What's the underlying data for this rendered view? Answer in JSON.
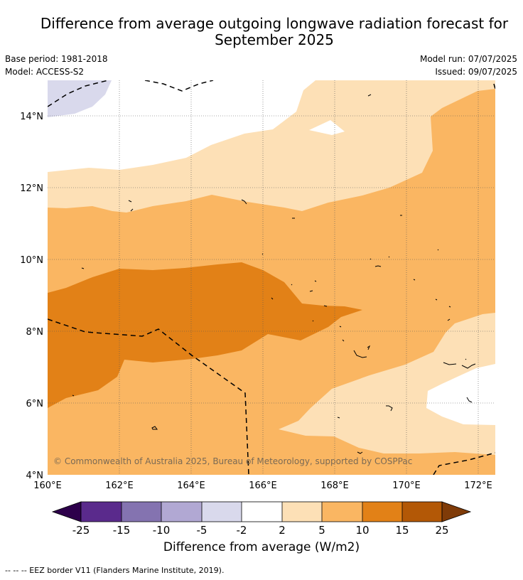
{
  "header": {
    "title_line1": "Difference from average outgoing longwave radiation forecast for",
    "title_line2": "September 2025",
    "base_period": "Base period: 1981-2018",
    "model": "Model: ACCESS-S2",
    "model_run": "Model run: 07/07/2025",
    "issued": "Issued: 09/07/2025"
  },
  "map": {
    "lon_ticks": [
      "160°E",
      "162°E",
      "164°E",
      "166°E",
      "168°E",
      "170°E",
      "172°E"
    ],
    "lat_ticks": [
      "14°N",
      "12°N",
      "10°N",
      "8°N",
      "6°N",
      "4°N"
    ],
    "copyright": "© Commonwealth of Australia 2025, Bureau of Meteorology, supported by COSPPac",
    "colors": {
      "lavender": "#d9d9ec",
      "white": "#ffffff",
      "pale_orange": "#fde0b6",
      "light_orange": "#fab662",
      "orange": "#e28117",
      "border": "#000000"
    }
  },
  "colorbar": {
    "title": "Difference from average (W/m2)",
    "tick_labels": [
      "-25",
      "-15",
      "-10",
      "-5",
      "-2",
      "2",
      "5",
      "10",
      "15",
      "25"
    ],
    "colors": [
      "#2d004b",
      "#5a2a8c",
      "#8473b0",
      "#b1a8d3",
      "#d9d9ec",
      "#ffffff",
      "#fde0b6",
      "#fab662",
      "#e28117",
      "#b35806",
      "#7f3b08"
    ]
  },
  "footer": {
    "legend_text": "--  --  -- EEZ border V11 (Flanders Marine Institute, 2019)."
  }
}
